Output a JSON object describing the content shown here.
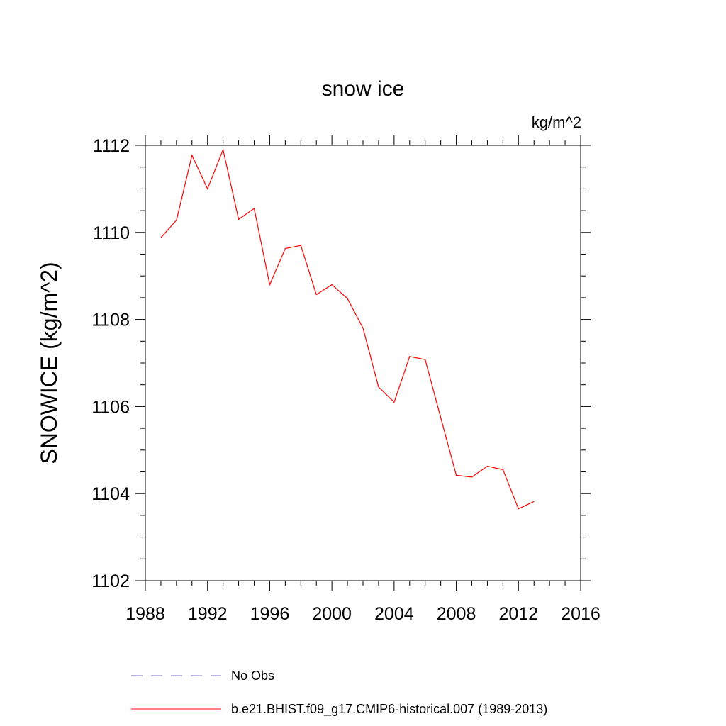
{
  "chart_data": {
    "type": "line",
    "title": "snow ice",
    "units_label": "kg/m^2",
    "ylabel": "SNOWICE  (kg/m^2)",
    "xlabel": "",
    "xlim": [
      1988,
      2016
    ],
    "ylim": [
      1102,
      1112
    ],
    "xticks": [
      1988,
      1992,
      1996,
      2000,
      2004,
      2008,
      2012,
      2016
    ],
    "yticks": [
      1102,
      1104,
      1106,
      1108,
      1110,
      1112
    ],
    "grid": false,
    "legend_position": "bottom-left",
    "series": [
      {
        "name": "b.e21.BHIST.f09_g17.CMIP6-historical.007 (1989-2013)",
        "color": "#ff0000",
        "style": "solid",
        "x": [
          1989,
          1990,
          1991,
          1992,
          1993,
          1994,
          1995,
          1996,
          1997,
          1998,
          1999,
          2000,
          2001,
          2002,
          2003,
          2004,
          2005,
          2006,
          2007,
          2008,
          2009,
          2010,
          2011,
          2012,
          2013
        ],
        "y": [
          1109.88,
          1110.28,
          1111.77,
          1111.0,
          1111.9,
          1110.3,
          1110.55,
          1108.8,
          1109.63,
          1109.7,
          1108.57,
          1108.8,
          1108.48,
          1107.8,
          1106.45,
          1106.1,
          1107.15,
          1107.08,
          1105.75,
          1104.42,
          1104.38,
          1104.63,
          1104.55,
          1103.65,
          1103.82
        ]
      }
    ],
    "legend": [
      {
        "label": "No Obs",
        "color": "#7b6cc4",
        "style": "dashed"
      },
      {
        "label": "b.e21.BHIST.f09_g17.CMIP6-historical.007 (1989-2013)",
        "color": "#ff0000",
        "style": "solid"
      }
    ]
  }
}
